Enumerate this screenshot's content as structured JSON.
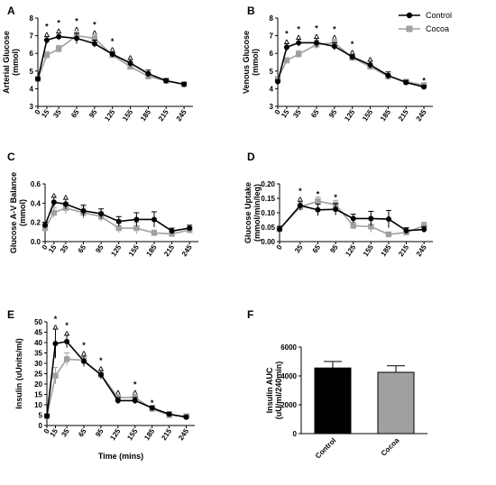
{
  "legend": {
    "control_label": "Control",
    "cocoa_label": "Cocoa",
    "control_color": "#000000",
    "cocoa_color": "#a0a0a0"
  },
  "chart_data": [
    {
      "panel": "A",
      "type": "line",
      "ylabel": "Arterial Glucose\n(mmol)",
      "xlabel": "",
      "ylim": [
        3,
        8
      ],
      "yticks": [
        3,
        4,
        5,
        6,
        7,
        8
      ],
      "x": [
        0,
        15,
        35,
        65,
        95,
        125,
        155,
        185,
        215,
        245
      ],
      "series": [
        {
          "name": "Control",
          "values": [
            4.55,
            6.75,
            6.95,
            6.85,
            6.55,
            5.95,
            5.45,
            4.85,
            4.45,
            4.25
          ],
          "errors": [
            0.1,
            0.2,
            0.2,
            0.3,
            0.2,
            0.15,
            0.2,
            0.2,
            0.12,
            0.1
          ]
        },
        {
          "name": "Cocoa",
          "values": [
            4.55,
            5.9,
            6.25,
            7.0,
            6.85,
            5.9,
            5.25,
            4.7,
            4.45,
            4.25
          ],
          "errors": [
            0.1,
            0.2,
            0.2,
            0.25,
            0.2,
            0.15,
            0.15,
            0.15,
            0.1,
            0.1
          ]
        }
      ],
      "annotations": [
        {
          "x": 15,
          "text": "*\n^"
        },
        {
          "x": 35,
          "text": "*\n^"
        },
        {
          "x": 65,
          "text": "*\n^"
        },
        {
          "x": 95,
          "text": "*\n^"
        },
        {
          "x": 125,
          "text": "*\n^"
        },
        {
          "x": 155,
          "text": "^"
        }
      ]
    },
    {
      "panel": "B",
      "type": "line",
      "ylabel": "Venous Glucose\n(mmol)",
      "xlabel": "",
      "ylim": [
        3,
        8
      ],
      "yticks": [
        3,
        4,
        5,
        6,
        7,
        8
      ],
      "x": [
        0,
        15,
        35,
        65,
        95,
        125,
        155,
        185,
        215,
        245
      ],
      "series": [
        {
          "name": "Control",
          "values": [
            4.4,
            6.35,
            6.6,
            6.6,
            6.4,
            5.8,
            5.35,
            4.75,
            4.35,
            4.1
          ],
          "errors": [
            0.1,
            0.2,
            0.2,
            0.25,
            0.2,
            0.15,
            0.2,
            0.2,
            0.12,
            0.1
          ]
        },
        {
          "name": "Cocoa",
          "values": [
            4.55,
            5.6,
            5.95,
            6.5,
            6.6,
            5.75,
            5.25,
            4.7,
            4.4,
            4.2
          ],
          "errors": [
            0.1,
            0.15,
            0.2,
            0.25,
            0.2,
            0.15,
            0.15,
            0.15,
            0.1,
            0.1
          ]
        }
      ],
      "annotations": [
        {
          "x": 15,
          "text": "*\n^"
        },
        {
          "x": 35,
          "text": "*\n^"
        },
        {
          "x": 65,
          "text": "*\n^"
        },
        {
          "x": 95,
          "text": "*\n^"
        },
        {
          "x": 125,
          "text": "*\n^"
        },
        {
          "x": 155,
          "text": "^"
        },
        {
          "x": 245,
          "text": "*"
        }
      ]
    },
    {
      "panel": "C",
      "type": "line",
      "ylabel": "Glucose A-V Balance\n(mmol)",
      "xlabel": "",
      "ylim": [
        0,
        0.6
      ],
      "yticks": [
        0.0,
        0.2,
        0.4,
        0.6
      ],
      "ytick_labels": [
        "0.0",
        "0.2",
        "0.4",
        "0.6"
      ],
      "x": [
        0,
        15,
        35,
        65,
        95,
        125,
        155,
        185,
        215,
        245
      ],
      "series": [
        {
          "name": "Control",
          "values": [
            0.17,
            0.41,
            0.39,
            0.32,
            0.29,
            0.21,
            0.23,
            0.23,
            0.11,
            0.14
          ],
          "errors": [
            0.03,
            0.05,
            0.05,
            0.06,
            0.05,
            0.05,
            0.07,
            0.08,
            0.03,
            0.03
          ]
        },
        {
          "name": "Cocoa",
          "values": [
            0.14,
            0.3,
            0.35,
            0.3,
            0.26,
            0.14,
            0.14,
            0.09,
            0.08,
            0.12
          ],
          "errors": [
            0.03,
            0.05,
            0.06,
            0.06,
            0.05,
            0.05,
            0.06,
            0.03,
            0.02,
            0.03
          ]
        }
      ],
      "annotations": [
        {
          "x": 15,
          "text": "^"
        },
        {
          "x": 35,
          "text": "^"
        }
      ]
    },
    {
      "panel": "D",
      "type": "line",
      "ylabel": "Glucose Uptake\n(mmol/min/leg)",
      "xlabel": "",
      "ylim": [
        0,
        0.2
      ],
      "yticks": [
        0.0,
        0.05,
        0.1,
        0.15,
        0.2
      ],
      "ytick_labels": [
        "0.00",
        "0.05",
        "0.10",
        "0.15",
        "0.20"
      ],
      "x": [
        0,
        35,
        65,
        95,
        125,
        155,
        185,
        215,
        245
      ],
      "series": [
        {
          "name": "Control",
          "values": [
            0.043,
            0.125,
            0.11,
            0.112,
            0.08,
            0.08,
            0.078,
            0.038,
            0.042
          ],
          "errors": [
            0.01,
            0.015,
            0.02,
            0.02,
            0.015,
            0.025,
            0.03,
            0.01,
            0.01
          ]
        },
        {
          "name": "Cocoa",
          "values": [
            0.043,
            0.12,
            0.14,
            0.128,
            0.055,
            0.052,
            0.025,
            0.032,
            0.055
          ],
          "errors": [
            0.01,
            0.015,
            0.015,
            0.015,
            0.012,
            0.02,
            0.008,
            0.01,
            0.012
          ]
        }
      ],
      "annotations": [
        {
          "x": 35,
          "text": "*\n^"
        },
        {
          "x": 65,
          "text": "*"
        },
        {
          "x": 95,
          "text": "*"
        }
      ]
    },
    {
      "panel": "E",
      "type": "line",
      "ylabel": "Insulin (uUnits/ml)",
      "xlabel": "Time (mins)",
      "ylim": [
        0,
        50
      ],
      "yticks": [
        0,
        5,
        10,
        15,
        20,
        25,
        30,
        35,
        40,
        45,
        50
      ],
      "x": [
        0,
        15,
        35,
        65,
        95,
        125,
        155,
        185,
        215,
        245
      ],
      "series": [
        {
          "name": "Control",
          "values": [
            4.5,
            39.5,
            40.5,
            31,
            24.5,
            12,
            12,
            8.5,
            5.5,
            4
          ],
          "errors": [
            1,
            7,
            3,
            2.5,
            2,
            1.5,
            1.5,
            1,
            1,
            0.8
          ]
        },
        {
          "name": "Cocoa",
          "values": [
            4.5,
            24,
            32,
            31.5,
            24.5,
            13.5,
            13.5,
            8,
            5,
            4.5
          ],
          "errors": [
            1,
            4,
            3,
            2.5,
            2,
            1.5,
            1.5,
            1,
            1,
            0.8
          ]
        }
      ],
      "annotations": [
        {
          "x": 15,
          "text": "*\n^"
        },
        {
          "x": 35,
          "text": "*\n^"
        },
        {
          "x": 65,
          "text": "*\n^"
        },
        {
          "x": 95,
          "text": "*\n^"
        },
        {
          "x": 125,
          "text": "^"
        },
        {
          "x": 155,
          "text": "*\n^"
        },
        {
          "x": 185,
          "text": "*"
        }
      ]
    },
    {
      "panel": "F",
      "type": "bar",
      "ylabel": "Insulin AUC\n(uU/ml/240min)",
      "xlabel": "",
      "ylim": [
        0,
        6000
      ],
      "yticks": [
        0,
        2000,
        4000,
        6000
      ],
      "categories": [
        "Control",
        "Cocoa"
      ],
      "values": [
        4550,
        4250
      ],
      "errors": [
        450,
        450
      ],
      "colors": [
        "#000000",
        "#a0a0a0"
      ]
    }
  ]
}
